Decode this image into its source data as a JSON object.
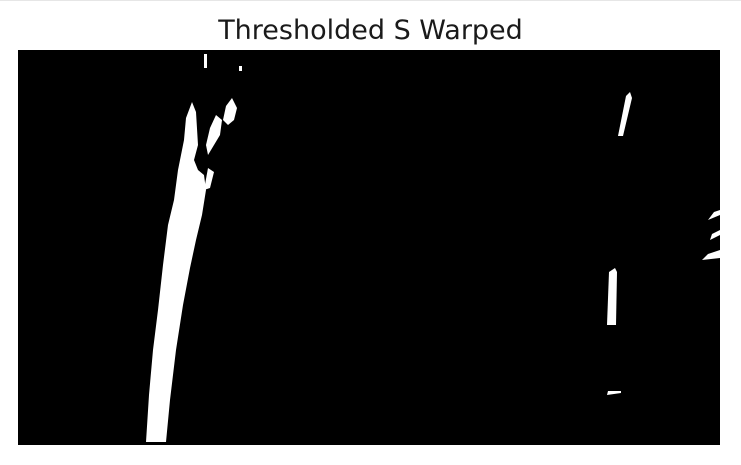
{
  "figure": {
    "title": "Thresholded S Warped"
  },
  "image": {
    "background_color": "#000000",
    "foreground_color": "#ffffff"
  }
}
